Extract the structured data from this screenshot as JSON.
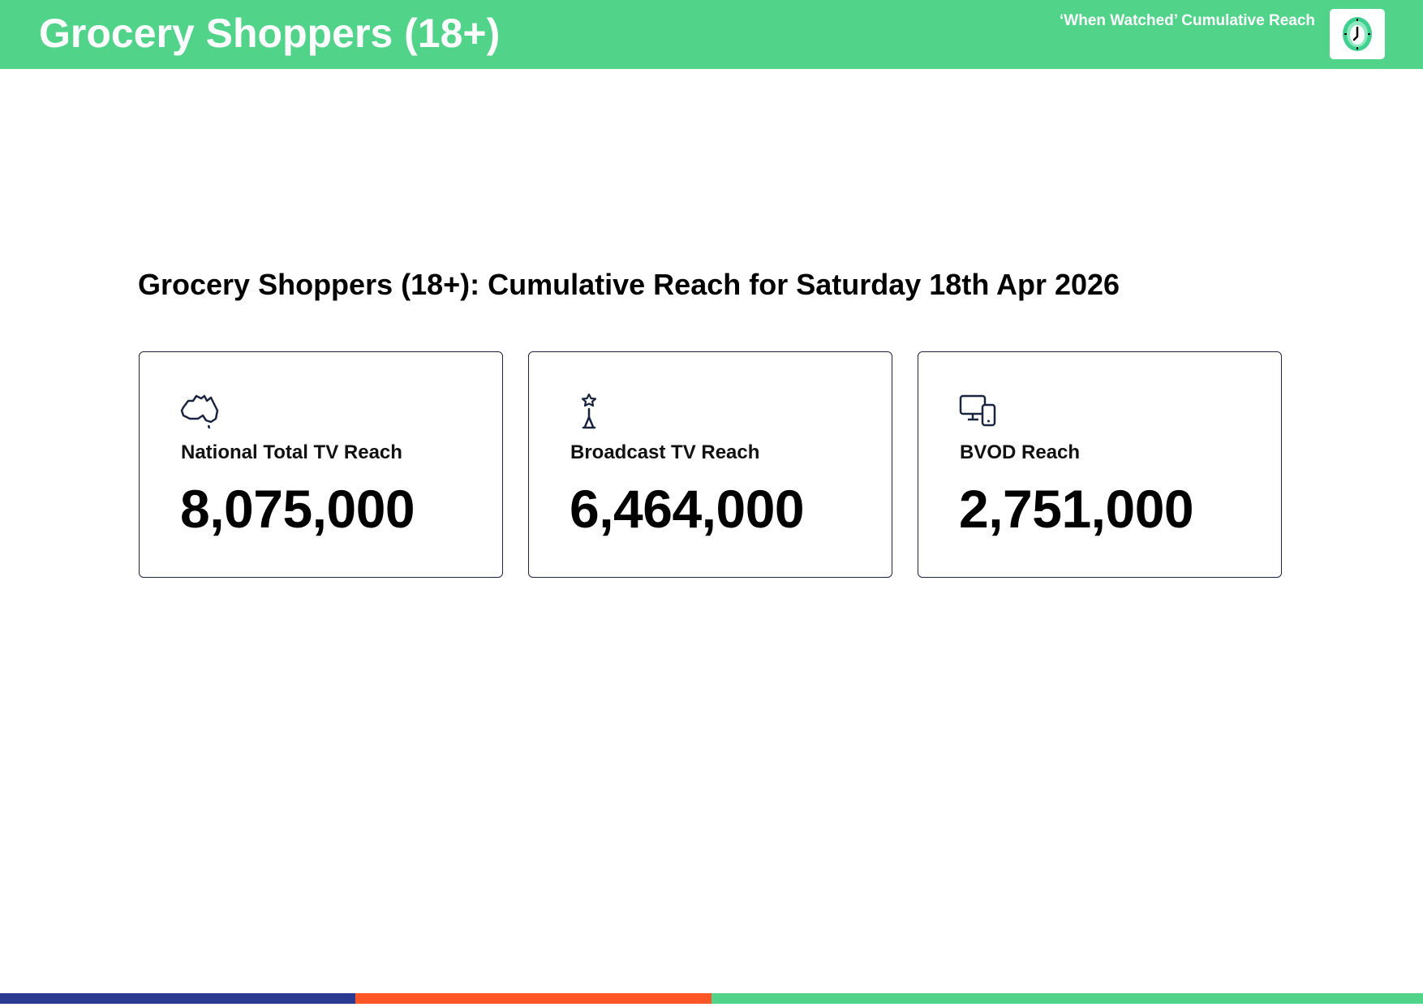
{
  "header": {
    "title": "Grocery Shoppers (18+)",
    "subtitle": "‘When Watched’ Cumulative Reach",
    "icon": "clock-icon",
    "color": "#51d38a"
  },
  "main": {
    "heading": "Grocery Shoppers (18+): Cumulative Reach for Saturday 18th Apr 2026",
    "cards": [
      {
        "icon": "australia-map-icon",
        "label": "National Total TV Reach",
        "value": "8,075,000"
      },
      {
        "icon": "broadcast-tower-icon",
        "label": "Broadcast TV Reach",
        "value": "6,464,000"
      },
      {
        "icon": "devices-icon",
        "label": "BVOD Reach",
        "value": "2,751,000"
      }
    ]
  },
  "footer": {
    "colors": [
      "#2b3990",
      "#ff5627",
      "#51d38a"
    ]
  }
}
